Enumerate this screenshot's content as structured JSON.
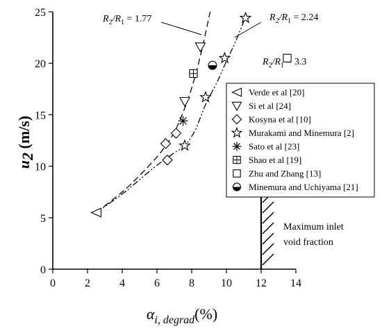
{
  "chart_data": {
    "type": "scatter",
    "xlim": [
      0,
      14
    ],
    "ylim": [
      0,
      25
    ],
    "x_ticks": [
      0,
      2,
      4,
      6,
      8,
      10,
      12,
      14
    ],
    "y_ticks": [
      0,
      5,
      10,
      15,
      20,
      25
    ],
    "y_axis_label": {
      "main": "u",
      "sub": "2",
      "unit": " (m/s)"
    },
    "x_axis_label": {
      "main": "α",
      "sub": "i, degrad",
      "unit": "(%)"
    },
    "grid": false,
    "legend_position": "right",
    "series": [
      {
        "name": "Verde et al [20]",
        "marker": "triangle-left",
        "points": [
          [
            2.5,
            5.5
          ]
        ]
      },
      {
        "name": "Si et al [24]",
        "marker": "triangle-down",
        "points": [
          [
            7.6,
            16.3
          ],
          [
            8.5,
            21.6
          ]
        ]
      },
      {
        "name": "Kosyna et al [10]",
        "marker": "diamond",
        "points": [
          [
            6.5,
            12.2
          ],
          [
            6.6,
            10.6
          ],
          [
            7.1,
            13.2
          ]
        ]
      },
      {
        "name": "Murakami and Minemura [2]",
        "marker": "star",
        "points": [
          [
            7.6,
            12.0
          ],
          [
            8.8,
            16.7
          ],
          [
            9.9,
            20.5
          ],
          [
            11.1,
            24.4
          ]
        ]
      },
      {
        "name": "Sato et al [23]",
        "marker": "asterisk",
        "points": [
          [
            7.5,
            14.4
          ]
        ]
      },
      {
        "name": "Shao et al [19]",
        "marker": "square-plus",
        "points": [
          [
            8.1,
            19.0
          ]
        ]
      },
      {
        "name": "Zhu and Zhang [13]",
        "marker": "square",
        "points": [
          [
            13.5,
            20.5
          ]
        ]
      },
      {
        "name": "Minemura and Uchiyama [21]",
        "marker": "half-circle",
        "points": [
          [
            9.2,
            19.8
          ]
        ]
      }
    ],
    "curves": [
      {
        "style": "dash",
        "points": [
          [
            2.5,
            5.5
          ],
          [
            4,
            7.5
          ],
          [
            5,
            9.1
          ],
          [
            6,
            10.9
          ],
          [
            6.5,
            12.0
          ],
          [
            7,
            13.3
          ],
          [
            7.5,
            15.2
          ],
          [
            8,
            17.6
          ],
          [
            8.5,
            20.7
          ],
          [
            9,
            24.5
          ],
          [
            9.1,
            25.5
          ]
        ]
      },
      {
        "style": "dash-dot-dot",
        "points": [
          [
            2.5,
            5.5
          ],
          [
            4,
            7.3
          ],
          [
            5,
            8.7
          ],
          [
            6,
            10.1
          ],
          [
            7,
            11.3
          ],
          [
            7.6,
            12.0
          ],
          [
            8.2,
            13.5
          ],
          [
            8.8,
            16.0
          ],
          [
            9.5,
            18.3
          ],
          [
            10.0,
            20.2
          ],
          [
            10.5,
            22.0
          ],
          [
            11.1,
            24.5
          ]
        ]
      }
    ],
    "annotations": {
      "r177": {
        "lhs": "R",
        "lsub": "2",
        "mid": "/R",
        "rsub": "1",
        "eq": " = 1.77"
      },
      "r224": {
        "lhs": "R",
        "lsub": "2",
        "mid": "/R",
        "rsub": "1",
        "eq": " = 2.24"
      },
      "r33": {
        "lhs": "R",
        "lsub": "2",
        "mid": "/R",
        "rsub": "1",
        "eq": " = 3.3"
      },
      "inlet": [
        "Maximum inlet",
        "void fraction"
      ]
    },
    "limit_line_x": 12
  }
}
